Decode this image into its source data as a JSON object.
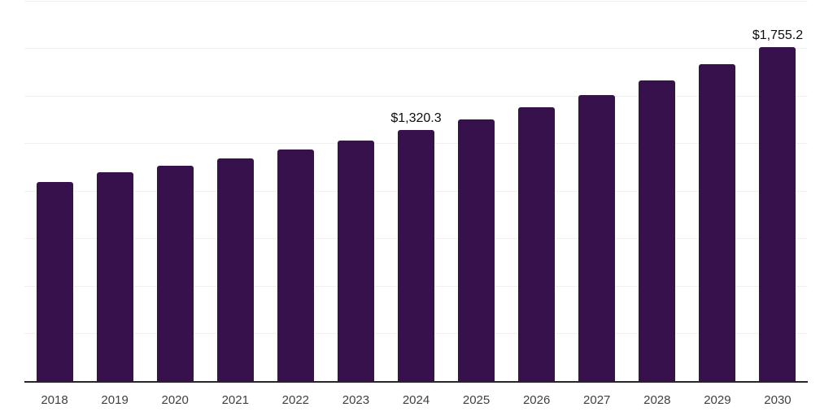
{
  "chart_data": {
    "type": "bar",
    "title": "",
    "xlabel": "",
    "ylabel": "",
    "categories": [
      "2018",
      "2019",
      "2020",
      "2021",
      "2022",
      "2023",
      "2024",
      "2025",
      "2026",
      "2027",
      "2028",
      "2029",
      "2030"
    ],
    "values": [
      1046.8,
      1100.5,
      1132.0,
      1172.0,
      1216.5,
      1263.5,
      1320.3,
      1377.0,
      1440.5,
      1505.0,
      1580.5,
      1665.0,
      1755.2
    ],
    "ylim": [
      0,
      2000
    ],
    "gridline_step": 250,
    "grid": "horizontal",
    "legend": "none",
    "y_axis_labels_visible": false,
    "data_labels": [
      {
        "category": "2024",
        "text": "$1,320.3"
      },
      {
        "category": "2030",
        "text": "$1,755.2"
      }
    ],
    "colors": {
      "bar": "#36114b",
      "gridline": "#f0f0f0",
      "axis_line": "#262626",
      "tick_label": "#404040",
      "data_label": "#0d0d0d",
      "background": "#ffffff"
    }
  }
}
